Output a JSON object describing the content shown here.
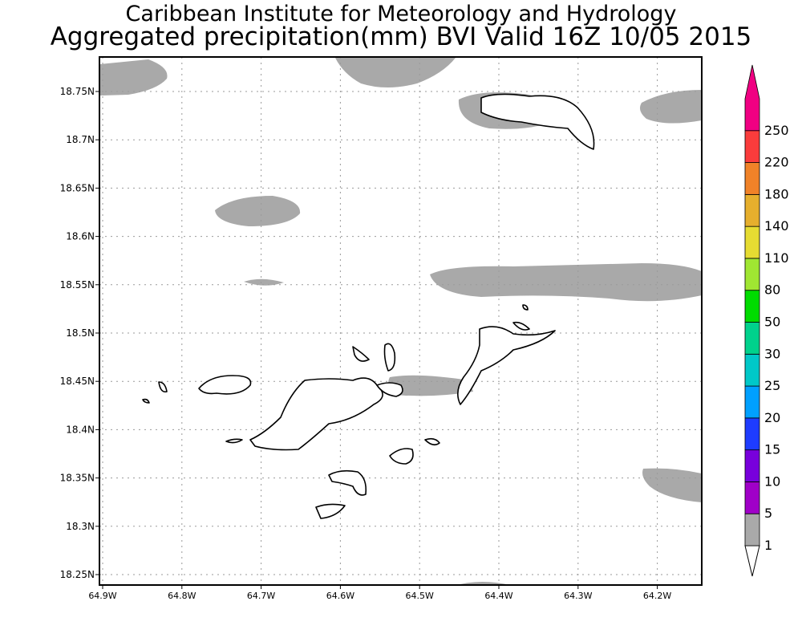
{
  "header": {
    "line1": "Caribbean Institute for Meteorology and Hydrology",
    "line2": "Aggregated precipitation(mm) BVI Valid 16Z 10/05 2015"
  },
  "map": {
    "lat_labels": [
      "18.75N",
      "18.7N",
      "18.65N",
      "18.6N",
      "18.55N",
      "18.5N",
      "18.45N",
      "18.4N",
      "18.35N",
      "18.3N",
      "18.25N"
    ],
    "lon_labels": [
      "64.9W",
      "64.8W",
      "64.7W",
      "64.6W",
      "64.5W",
      "64.4W",
      "64.3W",
      "64.2W"
    ],
    "grid": true,
    "precip_areas_color": "#a9a9a9"
  },
  "colorbar": {
    "labels": [
      "1",
      "5",
      "10",
      "15",
      "20",
      "25",
      "30",
      "50",
      "80",
      "110",
      "140",
      "180",
      "220",
      "250"
    ],
    "colors": [
      "#a9a9a9",
      "#a000c8",
      "#7800dc",
      "#1e3cff",
      "#00a0ff",
      "#00c8c8",
      "#00d28c",
      "#00dc00",
      "#a0e632",
      "#e6dc32",
      "#e6af2d",
      "#f08228",
      "#fa3c3c",
      "#f00082"
    ]
  }
}
